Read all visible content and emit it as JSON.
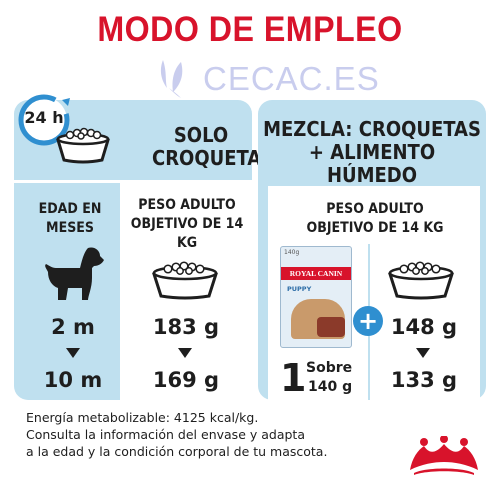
{
  "title": "MODO DE EMPLEO",
  "watermark": "CECAC.ES",
  "badge_24h": "24 h",
  "left_panel": {
    "header": "SOLO CROQUETAS",
    "age_label": "EDAD EN MESES",
    "weight_label": "PESO ADULTO OBJETIVO DE 14 KG",
    "rows": [
      {
        "age": "2 m",
        "grams": "183 g"
      },
      {
        "age": "10 m",
        "grams": "169 g"
      }
    ]
  },
  "right_panel": {
    "header": "MEZCLA: CROQUETAS + ALIMENTO HÚMEDO",
    "weight_label": "PESO ADULTO OBJETIVO DE 14 KG",
    "pouch": {
      "brand": "ROYAL CANIN",
      "variant": "PUPPY",
      "size": "140g"
    },
    "pouch_count": "1",
    "pouch_label": "Sobre",
    "pouch_weight": "140 g",
    "plus": "+",
    "rows": [
      {
        "grams": "148 g"
      },
      {
        "grams": "133 g"
      }
    ]
  },
  "footer": {
    "line1": "Energía metabolizable: 4125 kcal/kg.",
    "line2": "Consulta la información del envase y adapta",
    "line3": "a la edad y la condición corporal de tu mascota."
  },
  "colors": {
    "accent_red": "#d8132b",
    "panel_blue": "#bfe0ef",
    "clock_blue": "#2f8fd0"
  }
}
